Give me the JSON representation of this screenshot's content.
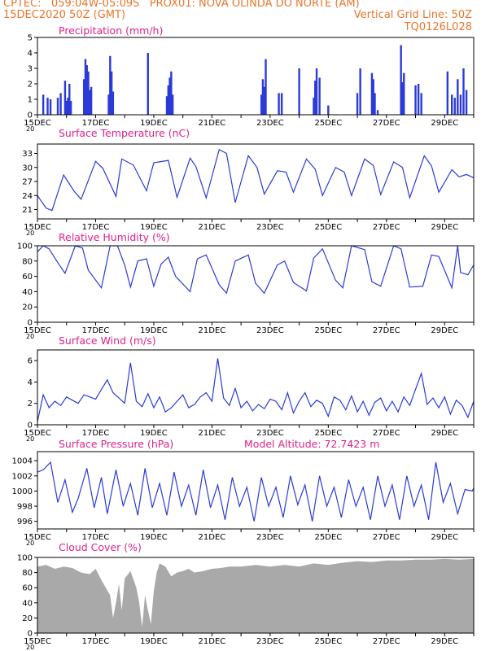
{
  "header": {
    "line1_left": "CPTEC:   059:04W-05:09S   PROX01: NOVA OLINDA DO NORTE (AM)",
    "line2_left": "15DEC2020 50Z (GMT)",
    "line2_right": "Vertical Grid Line: 50Z",
    "line3_right": "TQ0126L028"
  },
  "colors": {
    "header": "#e8762d",
    "title": "#e0208a",
    "series": "#2b3bd8",
    "cloud": "#a9a9a9"
  },
  "x_tick_labels": [
    "15DEC",
    "17DEC",
    "19DEC",
    "21DEC",
    "23DEC",
    "25DEC",
    "27DEC",
    "29DEC"
  ],
  "panel_stub_label": "20",
  "chart_data": [
    {
      "type": "bar",
      "title": "Precipitation (mm/h)",
      "x_range_days": [
        0,
        15
      ],
      "ylim": [
        0,
        5
      ],
      "yticks": [
        0,
        1,
        2,
        3,
        4,
        5
      ],
      "x": [
        0.2,
        0.35,
        0.45,
        0.7,
        0.8,
        0.95,
        1.0,
        1.05,
        1.1,
        1.15,
        1.6,
        1.65,
        1.7,
        1.75,
        1.8,
        1.85,
        2.45,
        2.5,
        2.55,
        2.6,
        3.8,
        4.45,
        4.5,
        4.55,
        4.6,
        4.65,
        7.7,
        7.75,
        7.8,
        7.85,
        8.3,
        8.4,
        9.0,
        9.5,
        9.55,
        9.6,
        9.7,
        10.0,
        11.0,
        11.1,
        11.5,
        11.55,
        11.6,
        11.7,
        12.5,
        12.55,
        12.6,
        13.0,
        13.1,
        13.2,
        14.1,
        14.25,
        14.35,
        14.45,
        14.55,
        14.65,
        14.75
      ],
      "values": [
        1.3,
        1.1,
        1.0,
        1.1,
        1.4,
        2.2,
        0.9,
        1.1,
        2.0,
        0.9,
        2.3,
        3.6,
        3.2,
        2.8,
        1.6,
        1.8,
        1.3,
        3.8,
        2.8,
        1.5,
        4.0,
        1.2,
        1.9,
        2.4,
        2.8,
        1.3,
        1.3,
        2.3,
        1.8,
        3.6,
        1.4,
        1.4,
        3.0,
        1.1,
        2.2,
        3.0,
        2.4,
        0.6,
        1.4,
        3.0,
        2.7,
        2.3,
        1.4,
        0.3,
        4.5,
        2.1,
        2.7,
        1.9,
        2.0,
        1.4,
        2.8,
        1.3,
        1.1,
        2.3,
        1.3,
        3.0,
        1.6
      ]
    },
    {
      "type": "line",
      "title": "Surface Temperature (nC)",
      "x_range_days": [
        0,
        15
      ],
      "ylim": [
        19,
        35
      ],
      "yticks": [
        21,
        24,
        27,
        30,
        33
      ],
      "x": [
        0.0,
        0.3,
        0.5,
        0.9,
        1.25,
        1.5,
        1.75,
        2.0,
        2.25,
        2.7,
        2.9,
        3.3,
        3.75,
        4.0,
        4.5,
        4.8,
        5.25,
        5.45,
        5.8,
        6.25,
        6.5,
        6.8,
        7.25,
        7.55,
        7.8,
        8.25,
        8.55,
        8.8,
        9.25,
        9.55,
        9.8,
        10.25,
        10.55,
        10.8,
        11.25,
        11.55,
        11.8,
        12.25,
        12.55,
        12.8,
        13.3,
        13.55,
        13.8,
        14.25,
        14.5,
        14.75,
        15.0
      ],
      "values": [
        24.0,
        21.3,
        20.8,
        28.4,
        25.0,
        23.2,
        27.2,
        31.3,
        29.8,
        23.8,
        31.8,
        30.5,
        25.0,
        31.0,
        31.5,
        23.6,
        32.0,
        30.2,
        23.5,
        33.8,
        33.0,
        22.5,
        32.5,
        30.0,
        24.3,
        29.3,
        29.0,
        24.7,
        31.8,
        29.6,
        24.0,
        30.0,
        29.0,
        24.0,
        31.8,
        30.4,
        24.2,
        31.2,
        30.0,
        23.5,
        32.5,
        30.3,
        24.7,
        29.5,
        28.0,
        28.5,
        27.8
      ]
    },
    {
      "type": "line",
      "title": "Relative Humidity (%)",
      "x_range_days": [
        0,
        15
      ],
      "ylim": [
        0,
        100
      ],
      "yticks": [
        0,
        20,
        40,
        60,
        80,
        100
      ],
      "x": [
        0.0,
        0.2,
        0.4,
        0.7,
        0.95,
        1.3,
        1.55,
        1.75,
        2.2,
        2.5,
        2.75,
        3.0,
        3.2,
        3.45,
        3.75,
        4.0,
        4.25,
        4.5,
        4.75,
        5.25,
        5.5,
        5.8,
        6.25,
        6.5,
        6.8,
        7.25,
        7.5,
        7.8,
        8.25,
        8.5,
        8.8,
        9.25,
        9.5,
        9.8,
        10.25,
        10.5,
        10.8,
        11.25,
        11.5,
        11.8,
        12.25,
        12.5,
        12.8,
        13.25,
        13.55,
        13.8,
        14.25,
        14.45,
        14.55,
        14.8,
        15.0
      ],
      "values": [
        92,
        100,
        96,
        78,
        64,
        100,
        97,
        68,
        45,
        100,
        100,
        75,
        46,
        80,
        83,
        47,
        76,
        85,
        60,
        40,
        83,
        88,
        49,
        38,
        80,
        88,
        51,
        38,
        75,
        80,
        52,
        41,
        84,
        96,
        55,
        45,
        100,
        95,
        53,
        47,
        100,
        96,
        46,
        47,
        88,
        86,
        45,
        100,
        65,
        62,
        75
      ]
    },
    {
      "type": "line",
      "title": "Surface Wind (m/s)",
      "x_range_days": [
        0,
        15
      ],
      "ylim": [
        0,
        7
      ],
      "yticks": [
        0,
        2,
        4,
        6
      ],
      "x": [
        0.0,
        0.2,
        0.4,
        0.6,
        0.8,
        1.0,
        1.2,
        1.4,
        1.6,
        1.8,
        2.0,
        2.2,
        2.4,
        2.6,
        2.8,
        3.0,
        3.2,
        3.4,
        3.6,
        3.8,
        4.0,
        4.2,
        4.4,
        4.6,
        4.8,
        5.0,
        5.2,
        5.4,
        5.6,
        5.8,
        6.0,
        6.2,
        6.4,
        6.6,
        6.8,
        7.0,
        7.2,
        7.4,
        7.6,
        7.8,
        8.0,
        8.2,
        8.4,
        8.6,
        8.8,
        9.0,
        9.2,
        9.4,
        9.6,
        9.8,
        10.0,
        10.2,
        10.4,
        10.6,
        10.8,
        11.0,
        11.2,
        11.4,
        11.6,
        11.8,
        12.0,
        12.2,
        12.4,
        12.6,
        12.8,
        13.0,
        13.2,
        13.4,
        13.6,
        13.8,
        14.0,
        14.2,
        14.4,
        14.6,
        14.8,
        15.0
      ],
      "values": [
        0.3,
        2.8,
        1.6,
        2.2,
        1.8,
        2.6,
        2.3,
        2.0,
        2.8,
        2.6,
        2.4,
        3.3,
        4.2,
        3.0,
        2.5,
        2.0,
        5.8,
        2.2,
        1.7,
        2.9,
        1.6,
        2.6,
        1.2,
        1.6,
        2.2,
        2.8,
        1.6,
        1.9,
        2.6,
        3.0,
        2.2,
        6.2,
        2.5,
        1.8,
        3.4,
        1.6,
        2.2,
        1.3,
        1.9,
        1.5,
        2.4,
        2.2,
        1.4,
        3.0,
        1.1,
        2.2,
        3.0,
        1.7,
        2.3,
        2.0,
        0.8,
        2.6,
        2.3,
        1.4,
        2.7,
        1.2,
        2.2,
        0.9,
        2.1,
        2.5,
        1.3,
        2.2,
        1.2,
        2.6,
        1.8,
        3.3,
        4.8,
        1.9,
        2.5,
        1.6,
        2.6,
        1.0,
        2.3,
        1.8,
        0.7,
        2.2
      ]
    },
    {
      "type": "line",
      "title": "Surface Pressure (hPa)",
      "annotation": "Model Altitude: 72.7423 m",
      "x_range_days": [
        0,
        15
      ],
      "ylim": [
        995,
        1005.2
      ],
      "yticks": [
        996,
        998,
        1000,
        1002,
        1004
      ],
      "x": [
        0.0,
        0.2,
        0.45,
        0.7,
        0.95,
        1.2,
        1.4,
        1.7,
        1.95,
        2.2,
        2.4,
        2.7,
        2.95,
        3.2,
        3.45,
        3.7,
        3.95,
        4.2,
        4.45,
        4.7,
        4.95,
        5.2,
        5.45,
        5.7,
        5.95,
        6.2,
        6.45,
        6.7,
        6.95,
        7.2,
        7.45,
        7.7,
        7.95,
        8.2,
        8.45,
        8.7,
        8.95,
        9.2,
        9.45,
        9.7,
        9.95,
        10.2,
        10.45,
        10.7,
        10.95,
        11.2,
        11.45,
        11.7,
        11.95,
        12.2,
        12.45,
        12.7,
        12.95,
        13.2,
        13.45,
        13.7,
        13.95,
        14.2,
        14.45,
        14.7,
        14.95,
        15.0
      ],
      "values": [
        1002.5,
        1002.8,
        1003.8,
        998.5,
        1001.5,
        997.2,
        999.0,
        1003.0,
        997.8,
        1001.8,
        997.0,
        1002.8,
        998.0,
        1001.0,
        996.8,
        1003.0,
        997.8,
        1001.0,
        996.8,
        1002.5,
        998.0,
        1000.8,
        996.8,
        1002.8,
        997.8,
        1000.8,
        996.2,
        1001.8,
        998.0,
        1000.5,
        996.0,
        1001.8,
        998.0,
        1000.5,
        996.5,
        1002.0,
        998.2,
        1000.8,
        996.0,
        1002.0,
        998.0,
        1000.5,
        996.5,
        1001.5,
        998.0,
        1000.5,
        996.2,
        1002.0,
        998.0,
        1000.8,
        996.2,
        1002.0,
        998.0,
        1000.8,
        996.2,
        1003.8,
        998.5,
        1001.0,
        997.0,
        1000.2,
        1000.0,
        1000.4
      ]
    },
    {
      "type": "area",
      "title": "Cloud Cover (%)",
      "x_range_days": [
        0,
        15
      ],
      "ylim": [
        0,
        100
      ],
      "yticks": [
        0,
        20,
        40,
        60,
        80,
        100
      ],
      "x": [
        0.0,
        0.3,
        0.6,
        0.9,
        1.2,
        1.5,
        1.8,
        2.0,
        2.2,
        2.5,
        2.6,
        2.7,
        2.8,
        2.9,
        3.0,
        3.2,
        3.4,
        3.5,
        3.6,
        3.7,
        3.8,
        3.9,
        4.0,
        4.1,
        4.2,
        4.4,
        4.6,
        4.8,
        5.0,
        5.2,
        5.4,
        5.7,
        6.0,
        6.3,
        6.6,
        7.0,
        7.5,
        8.0,
        8.5,
        9.0,
        9.5,
        10.0,
        10.5,
        11.0,
        11.5,
        12.0,
        12.5,
        13.0,
        13.5,
        14.0,
        14.5,
        15.0
      ],
      "values": [
        88,
        90,
        85,
        88,
        86,
        80,
        78,
        85,
        70,
        50,
        20,
        40,
        65,
        30,
        72,
        82,
        60,
        40,
        8,
        50,
        30,
        12,
        55,
        80,
        92,
        88,
        75,
        80,
        82,
        85,
        80,
        82,
        85,
        86,
        88,
        88,
        90,
        88,
        90,
        88,
        92,
        90,
        93,
        95,
        94,
        96,
        96,
        97,
        97,
        98,
        97,
        98
      ]
    }
  ]
}
